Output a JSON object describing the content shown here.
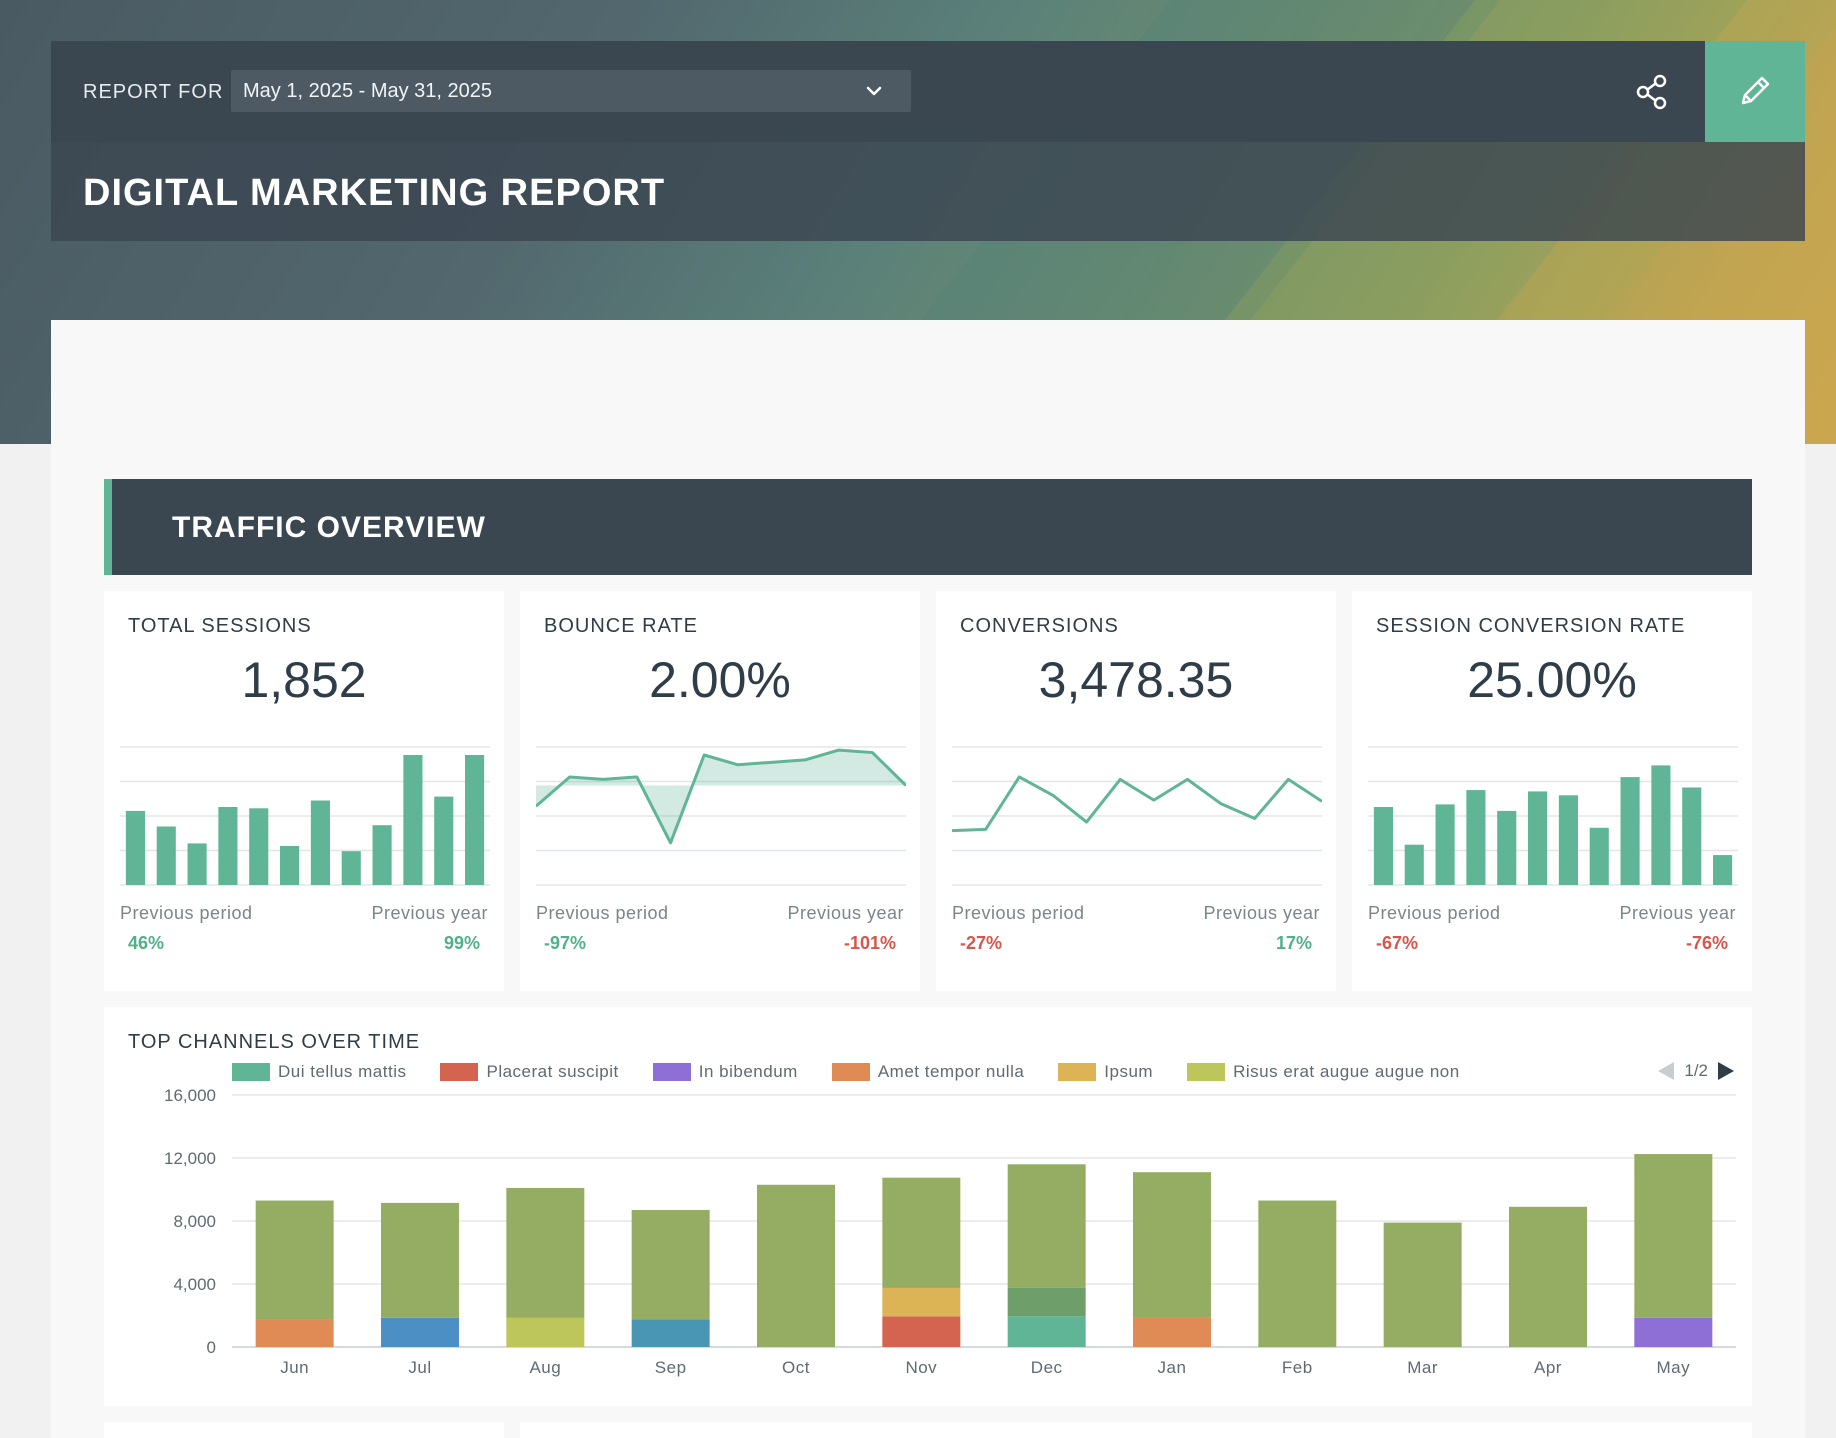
{
  "header": {
    "report_for_label": "REPORT FOR",
    "date_range": "May 1, 2025 - May 31, 2025",
    "title": "DIGITAL MARKETING REPORT"
  },
  "section": {
    "title": "TRAFFIC OVERVIEW"
  },
  "kpis": [
    {
      "label": "TOTAL SESSIONS",
      "value": "1,852",
      "spark_type": "bar",
      "spark_values": [
        0.57,
        0.45,
        0.32,
        0.6,
        0.59,
        0.3,
        0.65,
        0.26,
        0.46,
        1.0,
        0.68,
        1.0
      ],
      "prev_period_label": "Previous period",
      "prev_period_value": "46%",
      "prev_period_dir": "pos",
      "prev_year_label": "Previous year",
      "prev_year_value": "99%",
      "prev_year_dir": "pos"
    },
    {
      "label": "BOUNCE RATE",
      "value": "2.00%",
      "spark_type": "area",
      "spark_values": [
        0.58,
        0.82,
        0.8,
        0.82,
        0.28,
        1.0,
        0.92,
        0.94,
        0.96,
        1.04,
        1.02,
        0.75
      ],
      "spark_baseline": 0.75,
      "prev_period_label": "Previous period",
      "prev_period_value": "-97%",
      "prev_period_dir": "pos",
      "prev_year_label": "Previous year",
      "prev_year_value": "-101%",
      "prev_year_dir": "neg"
    },
    {
      "label": "CONVERSIONS",
      "value": "3,478.35",
      "spark_type": "line",
      "spark_values": [
        0.38,
        0.39,
        0.82,
        0.67,
        0.45,
        0.8,
        0.63,
        0.8,
        0.6,
        0.48,
        0.8,
        0.62
      ],
      "prev_period_label": "Previous period",
      "prev_period_value": "-27%",
      "prev_period_dir": "neg",
      "prev_year_label": "Previous year",
      "prev_year_value": "17%",
      "prev_year_dir": "pos"
    },
    {
      "label": "SESSION CONVERSION RATE",
      "value": "25.00%",
      "spark_type": "bar",
      "spark_values": [
        0.6,
        0.31,
        0.62,
        0.73,
        0.57,
        0.72,
        0.69,
        0.44,
        0.83,
        0.92,
        0.75,
        0.23
      ],
      "prev_period_label": "Previous period",
      "prev_period_value": "-67%",
      "prev_period_dir": "neg",
      "prev_year_label": "Previous year",
      "prev_year_value": "-76%",
      "prev_year_dir": "neg"
    }
  ],
  "chart_data": {
    "type": "bar",
    "stacked": true,
    "title": "TOP CHANNELS OVER TIME",
    "categories": [
      "Jun",
      "Jul",
      "Aug",
      "Sep",
      "Oct",
      "Nov",
      "Dec",
      "Jan",
      "Feb",
      "Mar",
      "Apr",
      "May"
    ],
    "ylim": [
      0,
      16000
    ],
    "yticks": [
      0,
      4000,
      8000,
      12000,
      16000
    ],
    "ytick_labels": [
      "0",
      "4,000",
      "8,000",
      "12,000",
      "16,000"
    ],
    "grid": true,
    "legend_position": "top",
    "legend": [
      {
        "name": "Dui tellus mattis",
        "color": "#5fb596"
      },
      {
        "name": "Placerat suscipit",
        "color": "#d46450"
      },
      {
        "name": "In bibendum",
        "color": "#8d6fd6"
      },
      {
        "name": "Amet tempor nulla",
        "color": "#e08b55"
      },
      {
        "name": "Ipsum",
        "color": "#dcb355"
      },
      {
        "name": "Risus erat augue augue non",
        "color": "#bdc65a"
      }
    ],
    "legend_page": "1/2",
    "bars": [
      {
        "month": "Jun",
        "segments": [
          {
            "color": "#e08b55",
            "value": 1750
          },
          {
            "color": "#95ad62",
            "value": 7550
          }
        ]
      },
      {
        "month": "Jul",
        "segments": [
          {
            "color": "#4b8fc4",
            "value": 1850
          },
          {
            "color": "#95ad62",
            "value": 7300
          }
        ]
      },
      {
        "month": "Aug",
        "segments": [
          {
            "color": "#bdc65a",
            "value": 1850
          },
          {
            "color": "#95ad62",
            "value": 8250
          }
        ]
      },
      {
        "month": "Sep",
        "segments": [
          {
            "color": "#4896b4",
            "value": 1750
          },
          {
            "color": "#95ad62",
            "value": 6950
          }
        ]
      },
      {
        "month": "Oct",
        "segments": [
          {
            "color": "#95ad62",
            "value": 10300
          }
        ]
      },
      {
        "month": "Nov",
        "segments": [
          {
            "color": "#d46450",
            "value": 1950
          },
          {
            "color": "#dcb355",
            "value": 1800
          },
          {
            "color": "#95ad62",
            "value": 7000
          }
        ]
      },
      {
        "month": "Dec",
        "segments": [
          {
            "color": "#5fb596",
            "value": 1950
          },
          {
            "color": "#6e9e6a",
            "value": 1800
          },
          {
            "color": "#95ad62",
            "value": 7850
          }
        ]
      },
      {
        "month": "Jan",
        "segments": [
          {
            "color": "#e08b55",
            "value": 1900
          },
          {
            "color": "#95ad62",
            "value": 9200
          }
        ]
      },
      {
        "month": "Feb",
        "segments": [
          {
            "color": "#95ad62",
            "value": 9300
          }
        ]
      },
      {
        "month": "Mar",
        "segments": [
          {
            "color": "#95ad62",
            "value": 7900
          }
        ]
      },
      {
        "month": "Apr",
        "segments": [
          {
            "color": "#95ad62",
            "value": 8900
          }
        ]
      },
      {
        "month": "May",
        "segments": [
          {
            "color": "#8d6fd6",
            "value": 1850
          },
          {
            "color": "#95ad62",
            "value": 10400
          }
        ]
      }
    ]
  },
  "colors": {
    "accent": "#5fb596",
    "dark": "#3a4650",
    "positive": "#4fb08a",
    "negative": "#d9544a"
  },
  "icons": {
    "share": "share-icon",
    "edit": "pencil-icon",
    "dropdown": "chevron-down-icon"
  }
}
